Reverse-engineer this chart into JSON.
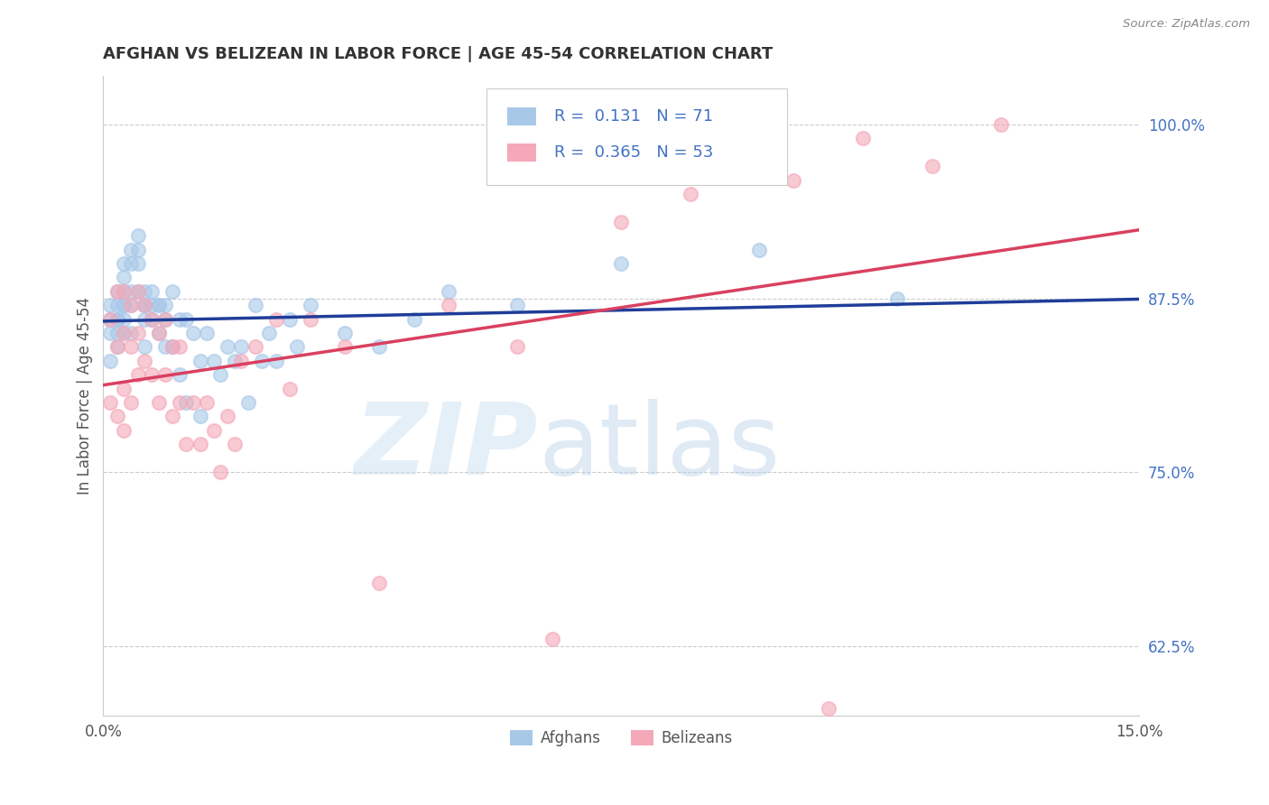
{
  "title": "AFGHAN VS BELIZEAN IN LABOR FORCE | AGE 45-54 CORRELATION CHART",
  "source": "Source: ZipAtlas.com",
  "ylabel": "In Labor Force | Age 45-54",
  "xlim": [
    0.0,
    0.15
  ],
  "ylim": [
    0.575,
    1.035
  ],
  "ytick_positions": [
    0.625,
    0.75,
    0.875,
    1.0
  ],
  "ytick_labels": [
    "62.5%",
    "75.0%",
    "87.5%",
    "100.0%"
  ],
  "afghan_color": "#a8c8e8",
  "belizean_color": "#f4a8b8",
  "afghan_line_color": "#1f3d99",
  "belizean_line_color": "#d94060",
  "R_afghan": 0.131,
  "N_afghan": 71,
  "R_belizean": 0.365,
  "N_belizean": 53,
  "afghan_x": [
    0.001,
    0.001,
    0.001,
    0.001,
    0.002,
    0.002,
    0.002,
    0.002,
    0.002,
    0.002,
    0.003,
    0.003,
    0.003,
    0.003,
    0.003,
    0.003,
    0.003,
    0.004,
    0.004,
    0.004,
    0.004,
    0.004,
    0.005,
    0.005,
    0.005,
    0.005,
    0.006,
    0.006,
    0.006,
    0.006,
    0.006,
    0.007,
    0.007,
    0.007,
    0.008,
    0.008,
    0.008,
    0.009,
    0.009,
    0.009,
    0.01,
    0.01,
    0.011,
    0.011,
    0.012,
    0.012,
    0.013,
    0.014,
    0.014,
    0.015,
    0.016,
    0.017,
    0.018,
    0.019,
    0.02,
    0.021,
    0.022,
    0.023,
    0.024,
    0.025,
    0.027,
    0.028,
    0.03,
    0.035,
    0.04,
    0.045,
    0.05,
    0.06,
    0.075,
    0.095,
    0.115
  ],
  "afghan_y": [
    0.87,
    0.86,
    0.85,
    0.83,
    0.88,
    0.87,
    0.86,
    0.86,
    0.85,
    0.84,
    0.9,
    0.89,
    0.88,
    0.87,
    0.87,
    0.86,
    0.85,
    0.91,
    0.9,
    0.88,
    0.87,
    0.85,
    0.92,
    0.91,
    0.9,
    0.88,
    0.88,
    0.87,
    0.87,
    0.86,
    0.84,
    0.88,
    0.87,
    0.86,
    0.87,
    0.87,
    0.85,
    0.87,
    0.86,
    0.84,
    0.88,
    0.84,
    0.86,
    0.82,
    0.86,
    0.8,
    0.85,
    0.83,
    0.79,
    0.85,
    0.83,
    0.82,
    0.84,
    0.83,
    0.84,
    0.8,
    0.87,
    0.83,
    0.85,
    0.83,
    0.86,
    0.84,
    0.87,
    0.85,
    0.84,
    0.86,
    0.88,
    0.87,
    0.9,
    0.91,
    0.875
  ],
  "belizean_x": [
    0.001,
    0.001,
    0.002,
    0.002,
    0.002,
    0.003,
    0.003,
    0.003,
    0.003,
    0.004,
    0.004,
    0.004,
    0.005,
    0.005,
    0.005,
    0.006,
    0.006,
    0.007,
    0.007,
    0.008,
    0.008,
    0.009,
    0.009,
    0.01,
    0.01,
    0.011,
    0.011,
    0.012,
    0.013,
    0.014,
    0.015,
    0.016,
    0.017,
    0.018,
    0.019,
    0.02,
    0.022,
    0.025,
    0.027,
    0.03,
    0.035,
    0.04,
    0.05,
    0.06,
    0.065,
    0.075,
    0.085,
    0.095,
    0.1,
    0.105,
    0.11,
    0.12,
    0.13
  ],
  "belizean_y": [
    0.86,
    0.8,
    0.88,
    0.84,
    0.79,
    0.88,
    0.85,
    0.81,
    0.78,
    0.87,
    0.84,
    0.8,
    0.88,
    0.85,
    0.82,
    0.87,
    0.83,
    0.86,
    0.82,
    0.85,
    0.8,
    0.86,
    0.82,
    0.84,
    0.79,
    0.84,
    0.8,
    0.77,
    0.8,
    0.77,
    0.8,
    0.78,
    0.75,
    0.79,
    0.77,
    0.83,
    0.84,
    0.86,
    0.81,
    0.86,
    0.84,
    0.67,
    0.87,
    0.84,
    0.63,
    0.93,
    0.95,
    0.97,
    0.96,
    0.58,
    0.99,
    0.97,
    1.0
  ]
}
